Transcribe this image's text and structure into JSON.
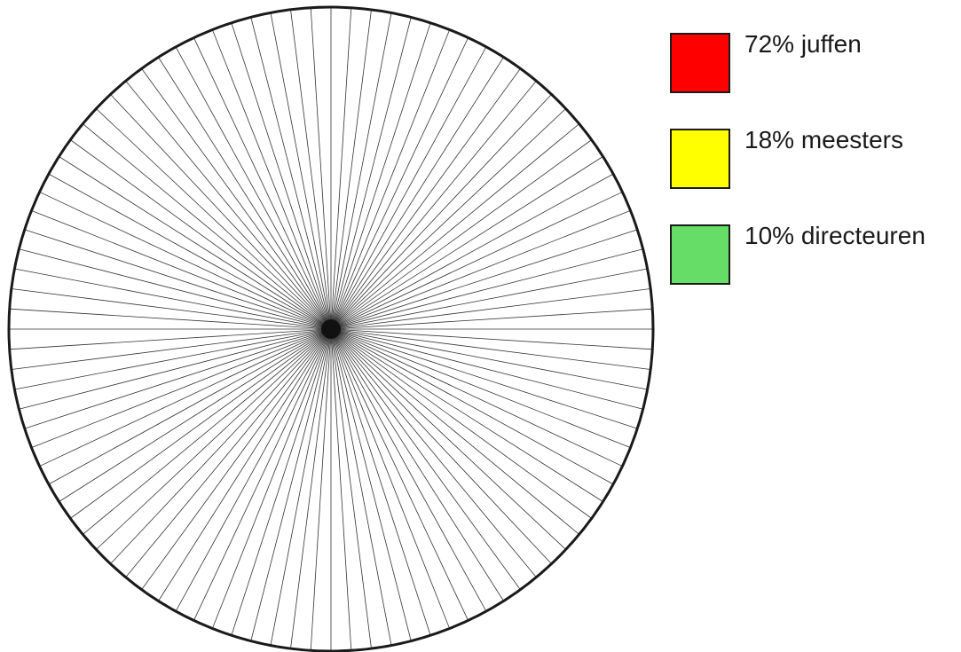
{
  "diagram": {
    "segments": 100,
    "circle_stroke": "#1a1a1a",
    "line_stroke": "#333333"
  },
  "legend": {
    "items": [
      {
        "label": "72% juffen",
        "color": "#ff0000"
      },
      {
        "label": "18% meesters",
        "color": "#ffff00"
      },
      {
        "label": "10% directeuren",
        "color": "#66dd66"
      }
    ]
  }
}
